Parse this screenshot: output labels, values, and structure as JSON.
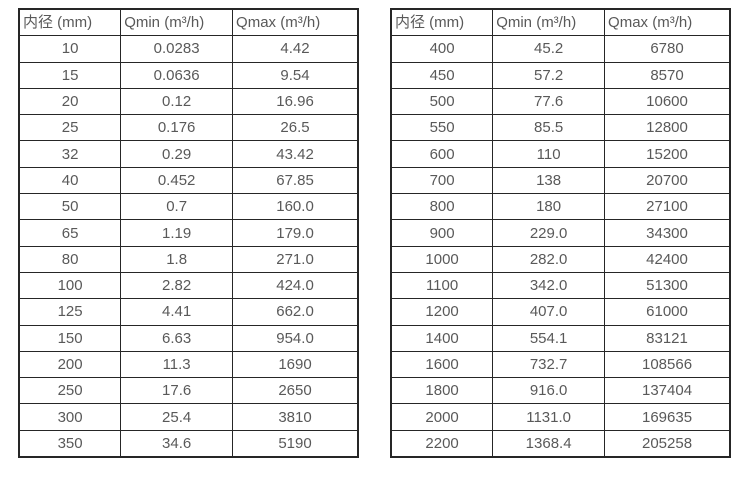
{
  "tables": [
    {
      "name": "flow-table-small-diameters",
      "headers": [
        "内径 (mm)",
        "Qmin (m³/h)",
        "Qmax (m³/h)"
      ],
      "rows": [
        [
          "10",
          "0.0283",
          "4.42"
        ],
        [
          "15",
          "0.0636",
          "9.54"
        ],
        [
          "20",
          "0.12",
          "16.96"
        ],
        [
          "25",
          "0.176",
          "26.5"
        ],
        [
          "32",
          "0.29",
          "43.42"
        ],
        [
          "40",
          "0.452",
          "67.85"
        ],
        [
          "50",
          "0.7",
          "160.0"
        ],
        [
          "65",
          "1.19",
          "179.0"
        ],
        [
          "80",
          "1.8",
          "271.0"
        ],
        [
          "100",
          "2.82",
          "424.0"
        ],
        [
          "125",
          "4.41",
          "662.0"
        ],
        [
          "150",
          "6.63",
          "954.0"
        ],
        [
          "200",
          "11.3",
          "1690"
        ],
        [
          "250",
          "17.6",
          "2650"
        ],
        [
          "300",
          "25.4",
          "3810"
        ],
        [
          "350",
          "34.6",
          "5190"
        ]
      ]
    },
    {
      "name": "flow-table-large-diameters",
      "headers": [
        "内径 (mm)",
        "Qmin (m³/h)",
        "Qmax (m³/h)"
      ],
      "rows": [
        [
          "400",
          "45.2",
          "6780"
        ],
        [
          "450",
          "57.2",
          "8570"
        ],
        [
          "500",
          "77.6",
          "10600"
        ],
        [
          "550",
          "85.5",
          "12800"
        ],
        [
          "600",
          "110",
          "15200"
        ],
        [
          "700",
          "138",
          "20700"
        ],
        [
          "800",
          "180",
          "27100"
        ],
        [
          "900",
          "229.0",
          "34300"
        ],
        [
          "1000",
          "282.0",
          "42400"
        ],
        [
          "1100",
          "342.0",
          "51300"
        ],
        [
          "1200",
          "407.0",
          "61000"
        ],
        [
          "1400",
          "554.1",
          "83121"
        ],
        [
          "1600",
          "732.7",
          "108566"
        ],
        [
          "1800",
          "916.0",
          "137404"
        ],
        [
          "2000",
          "1131.0",
          "169635"
        ],
        [
          "2200",
          "1368.4",
          "205258"
        ]
      ]
    }
  ],
  "colors": {
    "border": "#262626",
    "text": "#595959",
    "background": "#ffffff"
  }
}
